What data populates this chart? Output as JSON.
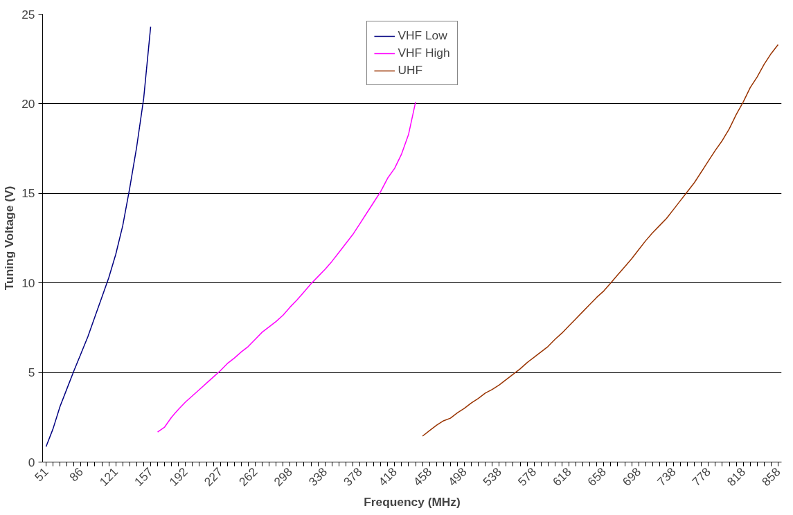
{
  "chart_data": {
    "type": "line",
    "xlabel": "Frequency (MHz)",
    "ylabel": "Tuning Voltage (V)",
    "categories": [
      "51",
      null,
      null,
      null,
      null,
      "86",
      null,
      null,
      null,
      null,
      "121",
      null,
      null,
      null,
      null,
      "157",
      null,
      null,
      null,
      null,
      "192",
      null,
      null,
      null,
      null,
      "227",
      null,
      null,
      null,
      null,
      "262",
      null,
      null,
      null,
      null,
      "298",
      null,
      null,
      null,
      null,
      "338",
      null,
      null,
      null,
      null,
      "378",
      null,
      null,
      null,
      null,
      "418",
      null,
      null,
      null,
      null,
      "458",
      null,
      null,
      null,
      null,
      "498",
      null,
      null,
      null,
      null,
      "538",
      null,
      null,
      null,
      null,
      "578",
      null,
      null,
      null,
      null,
      "618",
      null,
      null,
      null,
      null,
      "658",
      null,
      null,
      null,
      null,
      "698",
      null,
      null,
      null,
      null,
      "738",
      null,
      null,
      null,
      null,
      "778",
      null,
      null,
      null,
      null,
      "818",
      null,
      null,
      null,
      null,
      "858"
    ],
    "series": [
      {
        "name": "VHF Low",
        "color": "#000080",
        "values": [
          0.86,
          1.86,
          3.1,
          4.1,
          5.1,
          6.05,
          7.0,
          8.1,
          9.2,
          10.3,
          11.6,
          13.2,
          15.3,
          17.6,
          20.3,
          24.3,
          null,
          null,
          null,
          null,
          null,
          null,
          null,
          null,
          null,
          null,
          null,
          null,
          null,
          null,
          null,
          null,
          null,
          null,
          null,
          null,
          null,
          null,
          null,
          null,
          null,
          null,
          null,
          null,
          null,
          null,
          null,
          null,
          null,
          null,
          null,
          null,
          null,
          null,
          null,
          null,
          null,
          null,
          null,
          null,
          null,
          null,
          null,
          null,
          null,
          null,
          null,
          null,
          null,
          null,
          null,
          null,
          null,
          null,
          null,
          null,
          null,
          null,
          null,
          null,
          null,
          null,
          null,
          null,
          null,
          null,
          null,
          null,
          null,
          null,
          null,
          null,
          null,
          null,
          null,
          null,
          null,
          null,
          null,
          null,
          null,
          null,
          null,
          null,
          null,
          null
        ]
      },
      {
        "name": "VHF High",
        "color": "#ff00ff",
        "values": [
          null,
          null,
          null,
          null,
          null,
          null,
          null,
          null,
          null,
          null,
          null,
          null,
          null,
          null,
          null,
          null,
          1.68,
          1.95,
          2.5,
          2.95,
          3.35,
          3.7,
          4.05,
          4.4,
          4.75,
          5.1,
          5.5,
          5.8,
          6.15,
          6.45,
          6.85,
          7.25,
          7.55,
          7.85,
          8.2,
          8.65,
          9.05,
          9.5,
          9.95,
          10.35,
          10.75,
          11.2,
          11.7,
          12.2,
          12.7,
          13.3,
          13.9,
          14.5,
          15.1,
          15.85,
          16.4,
          17.2,
          18.3,
          20.1,
          null,
          null,
          null,
          null,
          null,
          null,
          null,
          null,
          null,
          null,
          null,
          null,
          null,
          null,
          null,
          null,
          null,
          null,
          null,
          null,
          null,
          null,
          null,
          null,
          null,
          null,
          null,
          null,
          null,
          null,
          null,
          null,
          null,
          null,
          null,
          null,
          null,
          null,
          null,
          null,
          null,
          null,
          null,
          null,
          null,
          null,
          null,
          null,
          null,
          null,
          null,
          null
        ]
      },
      {
        "name": "UHF",
        "color": "#993300",
        "values": [
          null,
          null,
          null,
          null,
          null,
          null,
          null,
          null,
          null,
          null,
          null,
          null,
          null,
          null,
          null,
          null,
          null,
          null,
          null,
          null,
          null,
          null,
          null,
          null,
          null,
          null,
          null,
          null,
          null,
          null,
          null,
          null,
          null,
          null,
          null,
          null,
          null,
          null,
          null,
          null,
          null,
          null,
          null,
          null,
          null,
          null,
          null,
          null,
          null,
          null,
          null,
          null,
          null,
          null,
          1.45,
          1.75,
          2.05,
          2.3,
          2.45,
          2.75,
          3.0,
          3.3,
          3.55,
          3.85,
          4.05,
          4.3,
          4.6,
          4.9,
          5.2,
          5.55,
          5.85,
          6.15,
          6.45,
          6.85,
          7.2,
          7.6,
          8.0,
          8.4,
          8.8,
          9.2,
          9.55,
          10.0,
          10.45,
          10.9,
          11.35,
          11.85,
          12.35,
          12.8,
          13.2,
          13.6,
          14.1,
          14.6,
          15.1,
          15.6,
          16.2,
          16.8,
          17.4,
          17.95,
          18.6,
          19.4,
          20.1,
          20.9,
          21.5,
          22.2,
          22.8,
          23.3
        ]
      }
    ],
    "ylim": [
      0,
      25
    ],
    "yticks": [
      0,
      5,
      10,
      15,
      20,
      25
    ],
    "grid": "y",
    "legend": "top",
    "marker": "none",
    "line_style": "solid"
  }
}
